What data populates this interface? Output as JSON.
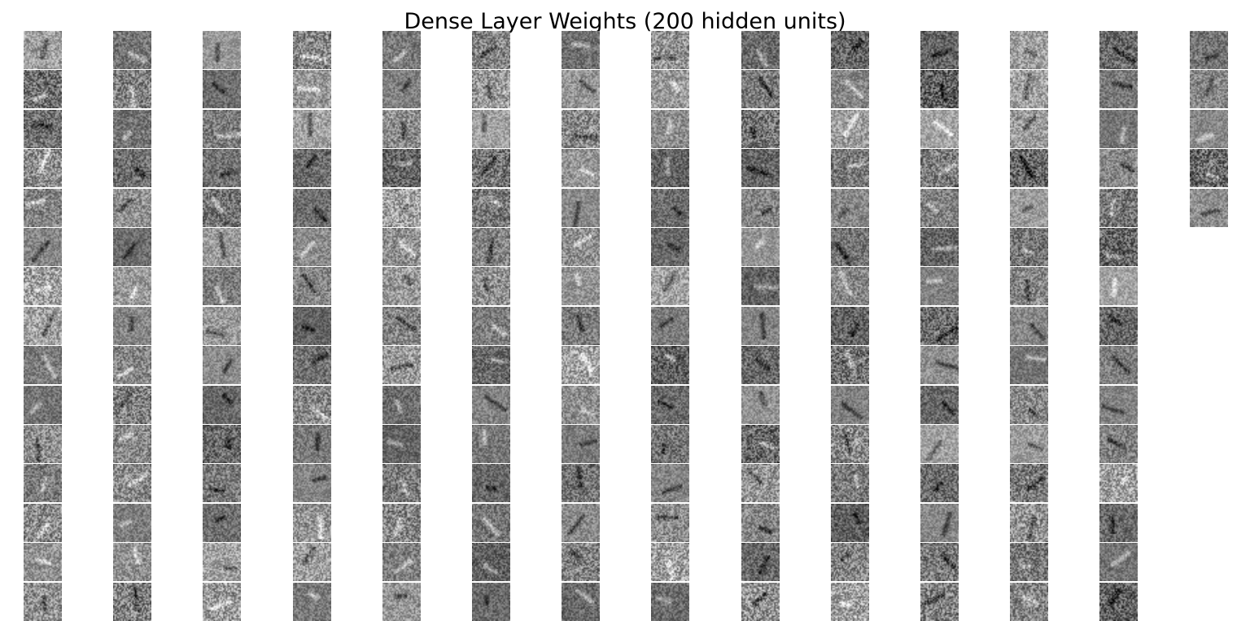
{
  "figure": {
    "title": "Dense Layer Weights (200 hidden units)"
  },
  "grid": {
    "units": 200,
    "columns": 14,
    "rows": 15,
    "colormap": "gray"
  }
}
